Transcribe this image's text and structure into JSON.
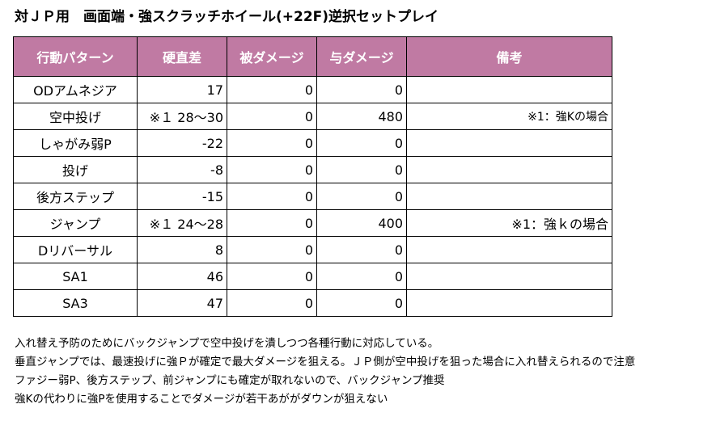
{
  "title": "対ＪＰ用　画面端・強スクラッチホイール(+22F)逆択セットプレイ",
  "table": {
    "headers": [
      "行動パターン",
      "硬直差",
      "被ダメージ",
      "与ダメージ",
      "備考"
    ],
    "rows": [
      {
        "action": "ODアムネジア",
        "frame": "17",
        "taken": "0",
        "dealt": "0",
        "note": ""
      },
      {
        "action": "空中投げ",
        "frame": "※１ 28〜30",
        "taken": "0",
        "dealt": "480",
        "note": "※1：強Kの場合"
      },
      {
        "action": "しゃがみ弱P",
        "frame": "-22",
        "taken": "0",
        "dealt": "0",
        "note": ""
      },
      {
        "action": "投げ",
        "frame": "-8",
        "taken": "0",
        "dealt": "0",
        "note": ""
      },
      {
        "action": "後方ステップ",
        "frame": "-15",
        "taken": "0",
        "dealt": "0",
        "note": ""
      },
      {
        "action": "ジャンプ",
        "frame": "※１ 24〜28",
        "taken": "0",
        "dealt": "400",
        "note": "※1：強ｋの場合"
      },
      {
        "action": "Dリバーサル",
        "frame": "8",
        "taken": "0",
        "dealt": "0",
        "note": ""
      },
      {
        "action": "SA1",
        "frame": "46",
        "taken": "0",
        "dealt": "0",
        "note": ""
      },
      {
        "action": "SA3",
        "frame": "47",
        "taken": "0",
        "dealt": "0",
        "note": ""
      }
    ]
  },
  "notes": [
    "入れ替え予防のためにバックジャンプで空中投げを潰しつつ各種行動に対応している。",
    "垂直ジャンプでは、最速投げに強Ｐが確定で最大ダメージを狙える。ＪＰ側が空中投げを狙った場合に入れ替えられるので注意",
    "ファジー弱P、後方ステップ、前ジャンプにも確定が取れないので、バックジャンプ推奨",
    "強Kの代わりに強Pを使用することでダメージが若干あががダウンが狙えない"
  ],
  "colors": {
    "header_bg": "#c07aa3",
    "header_text": "#ffffff",
    "border": "#000000"
  }
}
